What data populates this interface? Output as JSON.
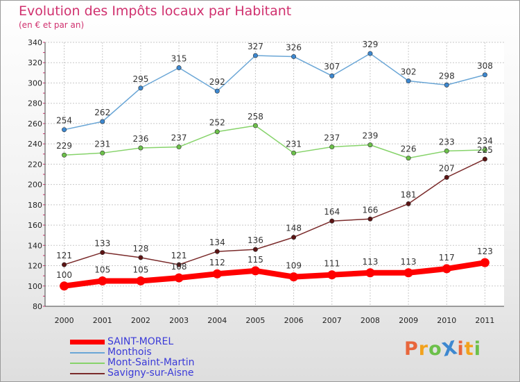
{
  "header": {
    "title": "Evolution des Impôts locaux par Habitant",
    "subtitle": "(en € et par an)"
  },
  "logo": {
    "text": "ProXiti",
    "colors": [
      "#e8663c",
      "#f2a21d",
      "#6cc04a",
      "#3d88d0",
      "#e8663c",
      "#f2a21d",
      "#6cc04a"
    ]
  },
  "chart_data": {
    "type": "line",
    "x": [
      "2000",
      "2001",
      "2002",
      "2003",
      "2004",
      "2005",
      "2006",
      "2007",
      "2008",
      "2009",
      "2010",
      "2011"
    ],
    "ylim": [
      80,
      340
    ],
    "yticks": [
      80,
      100,
      120,
      140,
      160,
      180,
      200,
      220,
      240,
      260,
      280,
      300,
      320,
      340
    ],
    "grid": true,
    "legend_position": "bottom-left",
    "series": [
      {
        "name": "Monthois",
        "color": "#6aa6d6",
        "marker": "#3d88d0",
        "values": [
          254,
          262,
          295,
          315,
          292,
          327,
          326,
          307,
          329,
          302,
          298,
          308
        ]
      },
      {
        "name": "Mont-Saint-Martin",
        "color": "#86d36a",
        "marker": "#6cc04a",
        "values": [
          229,
          231,
          236,
          237,
          252,
          258,
          231,
          237,
          239,
          226,
          233,
          234
        ]
      },
      {
        "name": "Savigny-sur-Aisne",
        "color": "#7a2a2a",
        "marker": "#5c1414",
        "values": [
          121,
          133,
          128,
          121,
          134,
          136,
          148,
          164,
          166,
          181,
          207,
          225
        ]
      },
      {
        "name": "SAINT-MOREL",
        "color": "#ff0000",
        "marker": "#ff0000",
        "values": [
          100,
          105,
          105,
          108,
          112,
          115,
          109,
          111,
          113,
          113,
          117,
          123
        ]
      }
    ],
    "legend_order": [
      "SAINT-MOREL",
      "Monthois",
      "Mont-Saint-Martin",
      "Savigny-sur-Aisne"
    ]
  }
}
